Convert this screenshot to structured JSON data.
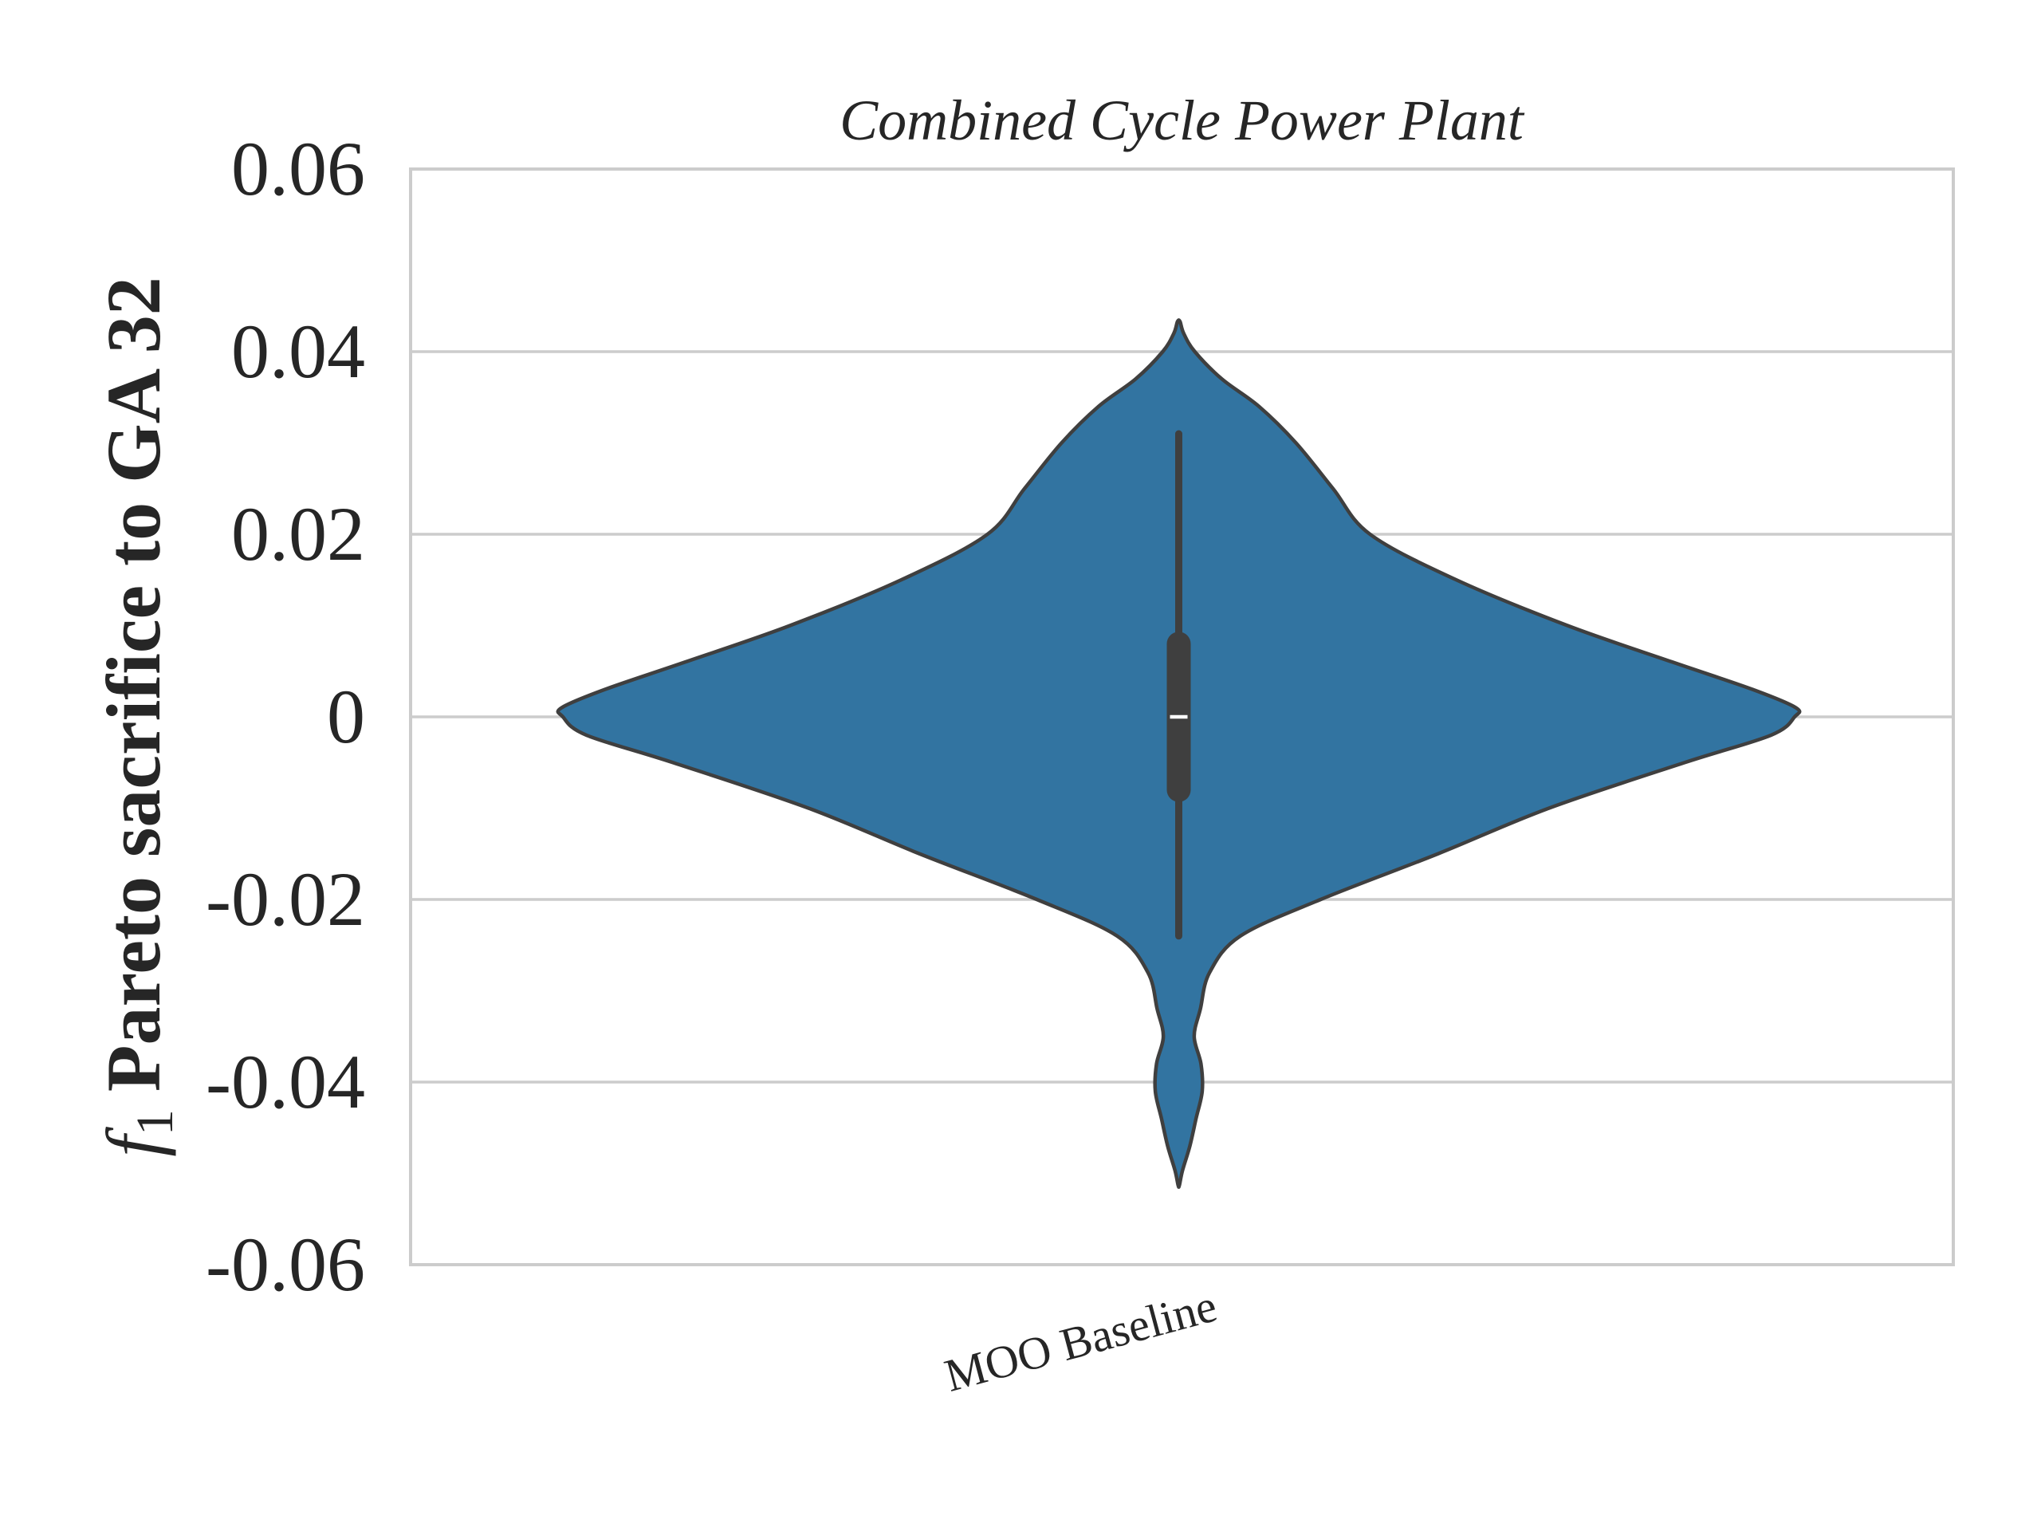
{
  "chart_data": {
    "type": "violin",
    "title": "Combined Cycle Power Plant",
    "ylabel_prefix": "f",
    "ylabel_subscript": "1",
    "ylabel": "Pareto sacrifice to GA 32",
    "xlabel": "",
    "categories": [
      "MOO Baseline"
    ],
    "ylim": [
      -0.06,
      0.06
    ],
    "yticks": [
      0.06,
      0.04,
      0.02,
      0,
      -0.02,
      -0.04,
      -0.06
    ],
    "ytick_labels": [
      "0.06",
      "0.04",
      "0.02",
      "0",
      "-0.02",
      "-0.04",
      "-0.06"
    ],
    "grid": true,
    "fill_color": "#3274a1",
    "edge_color": "#3f3f3f",
    "series": [
      {
        "category": "MOO Baseline",
        "median": 0.0,
        "q1": -0.008,
        "q3": 0.008,
        "whisker_low": -0.024,
        "whisker_high": 0.031,
        "density_profile": [
          [
            0.0433,
            0.002
          ],
          [
            0.042,
            0.008
          ],
          [
            0.04,
            0.026
          ],
          [
            0.037,
            0.07
          ],
          [
            0.034,
            0.13
          ],
          [
            0.03,
            0.19
          ],
          [
            0.025,
            0.25
          ],
          [
            0.02,
            0.31
          ],
          [
            0.015,
            0.45
          ],
          [
            0.01,
            0.63
          ],
          [
            0.006,
            0.8
          ],
          [
            0.003,
            0.93
          ],
          [
            0.001,
            1.0
          ],
          [
            0.0,
            0.998
          ],
          [
            -0.002,
            0.96
          ],
          [
            -0.005,
            0.82
          ],
          [
            -0.01,
            0.6
          ],
          [
            -0.015,
            0.42
          ],
          [
            -0.02,
            0.23
          ],
          [
            -0.024,
            0.1
          ],
          [
            -0.028,
            0.05
          ],
          [
            -0.032,
            0.035
          ],
          [
            -0.035,
            0.025
          ],
          [
            -0.038,
            0.036
          ],
          [
            -0.041,
            0.038
          ],
          [
            -0.044,
            0.028
          ],
          [
            -0.047,
            0.018
          ],
          [
            -0.0497,
            0.006
          ],
          [
            -0.0513,
            0.001
          ]
        ]
      }
    ]
  }
}
